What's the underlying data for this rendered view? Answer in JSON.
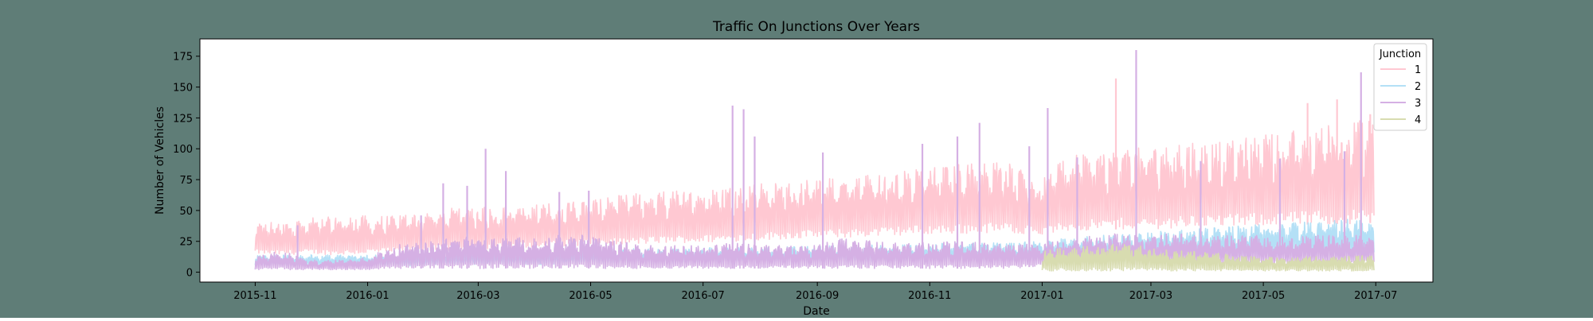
{
  "figure": {
    "background": "#5f7d77"
  },
  "chart_data": {
    "type": "line",
    "title": "Traffic On Junctions Over Years",
    "xlabel": "Date",
    "ylabel": "Number of Vehicles",
    "xlim": [
      "2015-10-02",
      "2017-08-01"
    ],
    "ylim": [
      -8,
      189
    ],
    "xticks": [
      "2015-11",
      "2016-01",
      "2016-03",
      "2016-05",
      "2016-07",
      "2016-09",
      "2016-11",
      "2017-01",
      "2017-03",
      "2017-05",
      "2017-07"
    ],
    "yticks": [
      0,
      25,
      50,
      75,
      100,
      125,
      150,
      175
    ],
    "grid": false,
    "legend": {
      "title": "Junction",
      "position": "top-right"
    },
    "series": [
      {
        "name": "1",
        "color": "#ffc8d2",
        "x": [
          "2015-11-01",
          "2015-11-15",
          "2015-12-01",
          "2015-12-15",
          "2016-01-01",
          "2016-01-15",
          "2016-02-01",
          "2016-02-15",
          "2016-03-01",
          "2016-03-15",
          "2016-04-01",
          "2016-04-15",
          "2016-05-01",
          "2016-05-15",
          "2016-06-01",
          "2016-06-15",
          "2016-07-01",
          "2016-07-15",
          "2016-08-01",
          "2016-08-15",
          "2016-09-01",
          "2016-09-15",
          "2016-10-01",
          "2016-10-15",
          "2016-11-01",
          "2016-11-15",
          "2016-12-01",
          "2016-12-15",
          "2017-01-01",
          "2017-01-15",
          "2017-02-01",
          "2017-02-15",
          "2017-03-01",
          "2017-03-15",
          "2017-04-01",
          "2017-04-15",
          "2017-05-01",
          "2017-05-15",
          "2017-06-01",
          "2017-06-15",
          "2017-06-30"
        ],
        "low": [
          15,
          14,
          15,
          14,
          15,
          16,
          17,
          18,
          19,
          19,
          20,
          21,
          22,
          22,
          23,
          24,
          24,
          25,
          26,
          27,
          28,
          28,
          29,
          30,
          31,
          31,
          32,
          32,
          30,
          33,
          34,
          35,
          35,
          36,
          37,
          37,
          38,
          38,
          39,
          39,
          40
        ],
        "high": [
          40,
          42,
          44,
          45,
          46,
          46,
          50,
          52,
          54,
          53,
          55,
          57,
          60,
          62,
          65,
          66,
          68,
          70,
          72,
          73,
          75,
          78,
          80,
          82,
          85,
          88,
          90,
          90,
          75,
          95,
          98,
          100,
          102,
          104,
          106,
          108,
          112,
          115,
          118,
          122,
          125
        ],
        "peaks": [
          {
            "x": "2017-02-10",
            "y": 157
          },
          {
            "x": "2017-05-25",
            "y": 137
          },
          {
            "x": "2017-06-10",
            "y": 140
          },
          {
            "x": "2017-06-28",
            "y": 128
          }
        ]
      },
      {
        "name": "2",
        "color": "#b4e0f6",
        "x": [
          "2015-11-01",
          "2015-11-15",
          "2015-12-01",
          "2015-12-15",
          "2016-01-01",
          "2016-01-15",
          "2016-02-01",
          "2016-02-15",
          "2016-03-01",
          "2016-03-15",
          "2016-04-01",
          "2016-04-15",
          "2016-05-01",
          "2016-05-15",
          "2016-06-01",
          "2016-06-15",
          "2016-07-01",
          "2016-07-15",
          "2016-08-01",
          "2016-08-15",
          "2016-09-01",
          "2016-09-15",
          "2016-10-01",
          "2016-10-15",
          "2016-11-01",
          "2016-11-15",
          "2016-12-01",
          "2016-12-15",
          "2017-01-01",
          "2017-01-15",
          "2017-02-01",
          "2017-02-15",
          "2017-03-01",
          "2017-03-15",
          "2017-04-01",
          "2017-04-15",
          "2017-05-01",
          "2017-05-15",
          "2017-06-01",
          "2017-06-15",
          "2017-06-30"
        ],
        "low": [
          5,
          5,
          5,
          5,
          5,
          5,
          5,
          6,
          6,
          6,
          6,
          6,
          7,
          7,
          7,
          7,
          7,
          7,
          8,
          8,
          8,
          8,
          8,
          8,
          9,
          9,
          9,
          9,
          9,
          10,
          10,
          10,
          11,
          11,
          11,
          11,
          12,
          12,
          12,
          12,
          12
        ],
        "high": [
          14,
          14,
          14,
          14,
          14,
          15,
          15,
          16,
          16,
          17,
          17,
          18,
          18,
          19,
          19,
          19,
          20,
          20,
          20,
          21,
          21,
          22,
          22,
          22,
          23,
          24,
          24,
          24,
          25,
          28,
          30,
          31,
          33,
          34,
          36,
          37,
          39,
          40,
          42,
          43,
          44
        ]
      },
      {
        "name": "3",
        "color": "#d5b0e4",
        "x": [
          "2015-11-01",
          "2015-11-15",
          "2015-12-01",
          "2015-12-15",
          "2016-01-01",
          "2016-01-15",
          "2016-02-01",
          "2016-02-15",
          "2016-03-01",
          "2016-03-15",
          "2016-04-01",
          "2016-04-15",
          "2016-05-01",
          "2016-05-15",
          "2016-06-01",
          "2016-06-15",
          "2016-07-01",
          "2016-07-15",
          "2016-08-01",
          "2016-08-15",
          "2016-09-01",
          "2016-09-15",
          "2016-10-01",
          "2016-10-15",
          "2016-11-01",
          "2016-11-15",
          "2016-12-01",
          "2016-12-15",
          "2017-01-01",
          "2017-01-15",
          "2017-02-01",
          "2017-02-15",
          "2017-03-01",
          "2017-03-15",
          "2017-04-01",
          "2017-04-15",
          "2017-05-01",
          "2017-05-15",
          "2017-06-01",
          "2017-06-15",
          "2017-06-30"
        ],
        "low": [
          2,
          2,
          2,
          2,
          2,
          3,
          3,
          3,
          3,
          3,
          3,
          3,
          3,
          3,
          3,
          3,
          3,
          3,
          3,
          3,
          3,
          3,
          3,
          3,
          3,
          3,
          3,
          3,
          5,
          6,
          6,
          6,
          6,
          6,
          6,
          6,
          6,
          6,
          6,
          6,
          6
        ],
        "high": [
          12,
          18,
          10,
          10,
          12,
          22,
          24,
          28,
          30,
          28,
          28,
          30,
          30,
          25,
          22,
          22,
          22,
          24,
          22,
          22,
          22,
          28,
          26,
          24,
          24,
          25,
          24,
          22,
          24,
          28,
          30,
          32,
          30,
          32,
          30,
          30,
          30,
          28,
          30,
          30,
          30
        ],
        "peaks": [
          {
            "x": "2015-11-24",
            "y": 38
          },
          {
            "x": "2016-01-30",
            "y": 46
          },
          {
            "x": "2016-02-11",
            "y": 72
          },
          {
            "x": "2016-02-24",
            "y": 70
          },
          {
            "x": "2016-03-05",
            "y": 100
          },
          {
            "x": "2016-03-16",
            "y": 82
          },
          {
            "x": "2016-04-14",
            "y": 65
          },
          {
            "x": "2016-04-30",
            "y": 66
          },
          {
            "x": "2016-07-17",
            "y": 135
          },
          {
            "x": "2016-07-23",
            "y": 132
          },
          {
            "x": "2016-07-29",
            "y": 110
          },
          {
            "x": "2016-09-04",
            "y": 97
          },
          {
            "x": "2016-10-28",
            "y": 104
          },
          {
            "x": "2016-11-16",
            "y": 110
          },
          {
            "x": "2016-11-28",
            "y": 121
          },
          {
            "x": "2016-12-25",
            "y": 102
          },
          {
            "x": "2017-01-04",
            "y": 133
          },
          {
            "x": "2017-01-20",
            "y": 93
          },
          {
            "x": "2017-02-21",
            "y": 180
          },
          {
            "x": "2017-03-28",
            "y": 90
          },
          {
            "x": "2017-05-10",
            "y": 92
          },
          {
            "x": "2017-06-14",
            "y": 98
          },
          {
            "x": "2017-06-23",
            "y": 162
          }
        ]
      },
      {
        "name": "4",
        "color": "#d8dcb0",
        "x": [
          "2017-01-01",
          "2017-01-15",
          "2017-02-01",
          "2017-02-15",
          "2017-03-01",
          "2017-03-15",
          "2017-04-01",
          "2017-04-15",
          "2017-05-01",
          "2017-05-15",
          "2017-06-01",
          "2017-06-15",
          "2017-06-30"
        ],
        "low": [
          1,
          1,
          1,
          1,
          1,
          1,
          1,
          1,
          1,
          1,
          1,
          1,
          1
        ],
        "high": [
          18,
          20,
          22,
          24,
          20,
          18,
          16,
          14,
          12,
          12,
          13,
          13,
          14
        ]
      }
    ]
  }
}
